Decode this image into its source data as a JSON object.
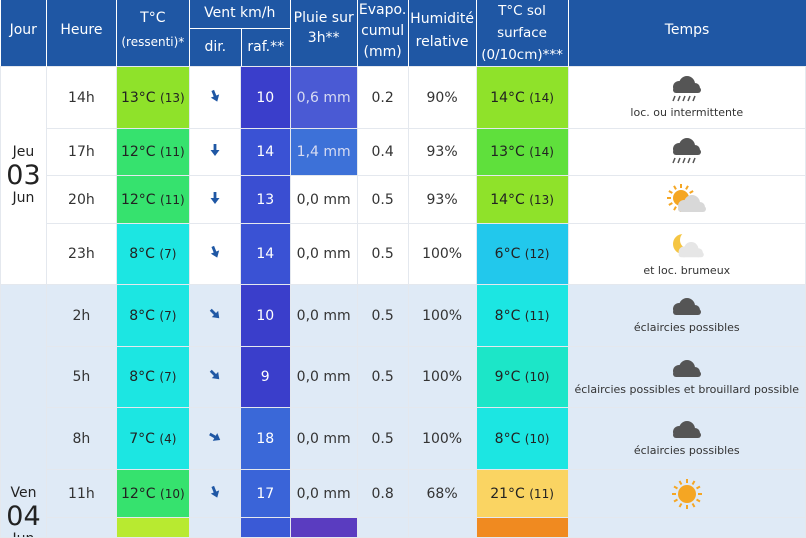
{
  "header": {
    "jour": "Jour",
    "heure": "Heure",
    "temp": "T°C",
    "temp_sub": "(ressenti)*",
    "vent": "Vent km/h",
    "dir": "dir.",
    "raf": "raf.**",
    "pluie_1": "Pluie sur",
    "pluie_2": "3h**",
    "evapo_1": "Evapo.",
    "evapo_2": "cumul",
    "evapo_3": "(mm)",
    "humid_1": "Humidité",
    "humid_2": "relative",
    "sol_1": "T°C sol",
    "sol_2": "surface",
    "sol_3": "(0/10cm)***",
    "temps": "Temps"
  },
  "days": [
    {
      "name": "Jeu",
      "num": "03",
      "month": "Jun"
    },
    {
      "name": "Ven",
      "num": "04",
      "month": "Jun"
    }
  ],
  "rows": [
    {
      "hour": "14h",
      "temp": "13°C",
      "feel": "(13)",
      "temp_color": "#8fe22a",
      "dir": "south-southeast",
      "raf": "10",
      "raf_color": "#3a3ecb",
      "rain": "0,6 mm",
      "rain_color": "#4a5ad4",
      "evapo": "0.2",
      "humidity": "90%",
      "sol": "14°C",
      "sol_feel": "(14)",
      "sol_color": "#8fe22a",
      "icon": "rain-icon",
      "label": "loc. ou intermittente"
    },
    {
      "hour": "17h",
      "temp": "12°C",
      "feel": "(11)",
      "temp_color": "#36e26e",
      "dir": "south",
      "raf": "14",
      "raf_color": "#3a52d4",
      "rain": "1,4 mm",
      "rain_color": "#3d71d8",
      "evapo": "0.4",
      "humidity": "93%",
      "sol": "13°C",
      "sol_feel": "(14)",
      "sol_color": "#5fe03c",
      "icon": "rain-icon",
      "label": ""
    },
    {
      "hour": "20h",
      "temp": "12°C",
      "feel": "(11)",
      "temp_color": "#36e26e",
      "dir": "south",
      "raf": "13",
      "raf_color": "#3a4ed2",
      "rain": "0,0 mm",
      "rain_color": "",
      "evapo": "0.5",
      "humidity": "93%",
      "sol": "14°C",
      "sol_feel": "(13)",
      "sol_color": "#8fe22a",
      "icon": "sun-cloud-icon",
      "label": ""
    },
    {
      "hour": "23h",
      "temp": "8°C",
      "feel": "(7)",
      "temp_color": "#1ce6e2",
      "dir": "south-southeast",
      "raf": "14",
      "raf_color": "#3a52d4",
      "rain": "0,0 mm",
      "rain_color": "",
      "evapo": "0.5",
      "humidity": "100%",
      "sol": "6°C",
      "sol_feel": "(12)",
      "sol_color": "#22c8ec",
      "icon": "moon-cloud-icon",
      "label": "et loc. brumeux"
    },
    {
      "hour": "2h",
      "temp": "8°C",
      "feel": "(7)",
      "temp_color": "#1ce6e2",
      "dir": "southeast",
      "raf": "10",
      "raf_color": "#3a3ecb",
      "rain": "0,0 mm",
      "rain_color": "",
      "evapo": "0.5",
      "humidity": "100%",
      "sol": "8°C",
      "sol_feel": "(11)",
      "sol_color": "#1ce6e2",
      "icon": "cloud-icon",
      "label": "éclaircies possibles"
    },
    {
      "hour": "5h",
      "temp": "8°C",
      "feel": "(7)",
      "temp_color": "#1ce6e2",
      "dir": "southeast",
      "raf": "9",
      "raf_color": "#3a3ecb",
      "rain": "0,0 mm",
      "rain_color": "",
      "evapo": "0.5",
      "humidity": "100%",
      "sol": "9°C",
      "sol_feel": "(10)",
      "sol_color": "#1ce6c8",
      "icon": "cloud-icon",
      "label": "éclaircies possibles et brouillard possible"
    },
    {
      "hour": "8h",
      "temp": "7°C",
      "feel": "(4)",
      "temp_color": "#1ce6e2",
      "dir": "east-southeast",
      "raf": "18",
      "raf_color": "#3a68d8",
      "rain": "0,0 mm",
      "rain_color": "",
      "evapo": "0.5",
      "humidity": "100%",
      "sol": "8°C",
      "sol_feel": "(10)",
      "sol_color": "#1ce6e2",
      "icon": "cloud-icon",
      "label": "éclaircies possibles"
    },
    {
      "hour": "11h",
      "temp": "12°C",
      "feel": "(10)",
      "temp_color": "#36e26e",
      "dir": "south-southeast",
      "raf": "17",
      "raf_color": "#3a64d8",
      "rain": "0,0 mm",
      "rain_color": "",
      "evapo": "0.8",
      "humidity": "68%",
      "sol": "21°C",
      "sol_feel": "(11)",
      "sol_color": "#fad462",
      "icon": "sun-icon",
      "label": ""
    }
  ],
  "partial_row": {
    "temp_color": "#b8ea30",
    "raf_color": "#3a5ad6",
    "rain_color": "#5a3cc0",
    "sol_color": "#f08a20"
  }
}
